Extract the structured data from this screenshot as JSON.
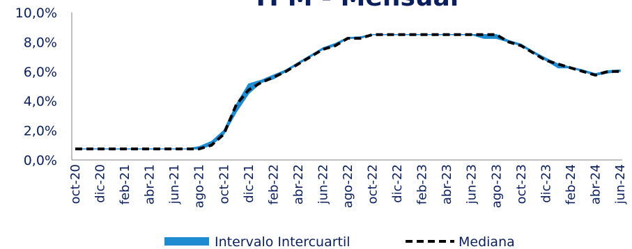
{
  "chart_data": {
    "type": "line",
    "title": "TPM - Mensual",
    "xlabel": "",
    "ylabel": "",
    "ylim": [
      0,
      10
    ],
    "y_ticks": [
      "0,0%",
      "2,0%",
      "4,0%",
      "6,0%",
      "8,0%",
      "10,0%"
    ],
    "grid": false,
    "legend_position": "bottom",
    "x": [
      "oct-20",
      "nov-20",
      "dic-20",
      "ene-21",
      "feb-21",
      "mar-21",
      "abr-21",
      "may-21",
      "jun-21",
      "jul-21",
      "ago-21",
      "sep-21",
      "oct-21",
      "nov-21",
      "dic-21",
      "ene-22",
      "feb-22",
      "mar-22",
      "abr-22",
      "may-22",
      "jun-22",
      "jul-22",
      "ago-22",
      "sep-22",
      "oct-22",
      "nov-22",
      "dic-22",
      "ene-23",
      "feb-23",
      "mar-23",
      "abr-23",
      "may-23",
      "jun-23",
      "jul-23",
      "ago-23",
      "sep-23",
      "oct-23",
      "nov-23",
      "dic-23",
      "ene-24",
      "feb-24",
      "mar-24",
      "abr-24",
      "may-24",
      "jun-24"
    ],
    "x_tick_labels": [
      "oct-20",
      "dic-20",
      "feb-21",
      "abr-21",
      "jun-21",
      "ago-21",
      "oct-21",
      "dic-21",
      "feb-22",
      "abr-22",
      "jun-22",
      "ago-22",
      "oct-22",
      "dic-22",
      "feb-23",
      "abr-23",
      "jun-23",
      "ago-23",
      "oct-23",
      "dic-23",
      "feb-24",
      "abr-24",
      "jun-24"
    ],
    "series": [
      {
        "name": "Intervalo Intercuartil",
        "color": "#1f8bd1",
        "lower": [
          0.75,
          0.75,
          0.75,
          0.75,
          0.75,
          0.75,
          0.75,
          0.75,
          0.75,
          0.75,
          0.75,
          1.0,
          1.75,
          3.25,
          4.5,
          5.25,
          5.5,
          6.0,
          6.5,
          7.0,
          7.5,
          7.75,
          8.25,
          8.25,
          8.5,
          8.5,
          8.5,
          8.5,
          8.5,
          8.5,
          8.5,
          8.5,
          8.5,
          8.25,
          8.25,
          8.0,
          7.75,
          7.25,
          6.75,
          6.25,
          6.25,
          6.0,
          5.75,
          5.9,
          6.0
        ],
        "upper": [
          0.75,
          0.75,
          0.75,
          0.75,
          0.75,
          0.75,
          0.75,
          0.75,
          0.75,
          0.75,
          0.9,
          1.25,
          2.0,
          3.75,
          5.15,
          5.4,
          5.75,
          6.1,
          6.6,
          7.1,
          7.6,
          7.9,
          8.3,
          8.35,
          8.5,
          8.5,
          8.5,
          8.5,
          8.5,
          8.5,
          8.5,
          8.5,
          8.5,
          8.5,
          8.5,
          8.1,
          7.85,
          7.35,
          6.9,
          6.5,
          6.3,
          6.1,
          5.85,
          6.05,
          6.1
        ]
      },
      {
        "name": "Mediana",
        "color": "#000000",
        "values": [
          0.75,
          0.75,
          0.75,
          0.75,
          0.75,
          0.75,
          0.75,
          0.75,
          0.75,
          0.75,
          0.75,
          1.0,
          1.75,
          3.75,
          4.75,
          5.25,
          5.6,
          6.0,
          6.5,
          7.0,
          7.5,
          7.75,
          8.25,
          8.25,
          8.5,
          8.5,
          8.5,
          8.5,
          8.5,
          8.5,
          8.5,
          8.5,
          8.5,
          8.5,
          8.5,
          8.0,
          7.75,
          7.25,
          6.75,
          6.5,
          6.25,
          6.0,
          5.75,
          6.0,
          6.0
        ]
      }
    ]
  }
}
